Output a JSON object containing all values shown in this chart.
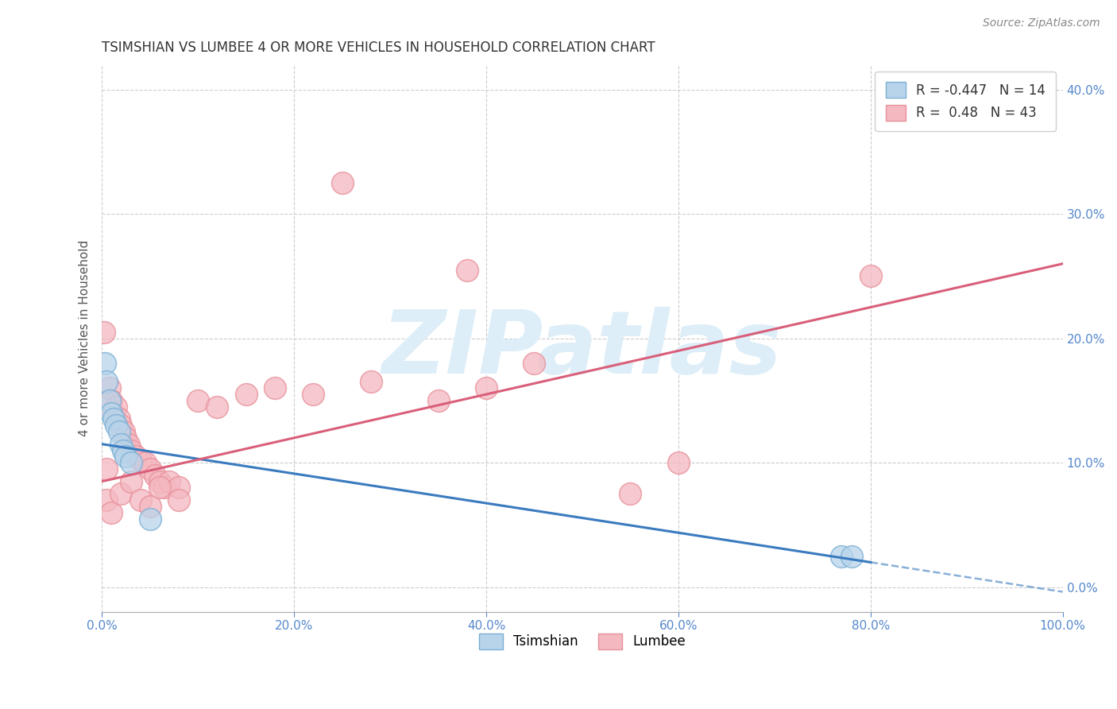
{
  "title": "TSIMSHIAN VS LUMBEE 4 OR MORE VEHICLES IN HOUSEHOLD CORRELATION CHART",
  "source_text": "Source: ZipAtlas.com",
  "ylabel": "4 or more Vehicles in Household",
  "legend_labels": [
    "Tsimshian",
    "Lumbee"
  ],
  "tsimshian_R": -0.447,
  "tsimshian_N": 14,
  "lumbee_R": 0.48,
  "lumbee_N": 43,
  "tsimshian_face_color": "#b8d4ea",
  "tsimshian_edge_color": "#7bafd4",
  "lumbee_face_color": "#f4b8c1",
  "lumbee_edge_color": "#e8909a",
  "tsimshian_line_color": "#3a7bbf",
  "lumbee_line_color": "#d95f7a",
  "background_color": "#ffffff",
  "grid_color": "#cccccc",
  "watermark": "ZIPatlas",
  "watermark_color": "#ddeef8",
  "xlim": [
    0.0,
    100.0
  ],
  "ylim": [
    -2.0,
    42.0
  ],
  "xtick_positions": [
    0,
    20,
    40,
    60,
    80,
    100
  ],
  "ytick_positions": [
    0,
    10,
    20,
    30,
    40
  ],
  "title_fontsize": 12,
  "tick_label_fontsize": 11,
  "tick_label_color": "#5588cc",
  "tsimshian_x": [
    0.3,
    0.5,
    0.8,
    1.0,
    1.2,
    1.5,
    1.8,
    2.0,
    2.2,
    2.5,
    3.0,
    5.0,
    77.0,
    78.0
  ],
  "tsimshian_y": [
    18.0,
    16.5,
    15.0,
    14.0,
    13.5,
    13.0,
    12.5,
    11.5,
    11.0,
    10.5,
    10.0,
    5.5,
    2.5,
    2.5
  ],
  "lumbee_x": [
    0.2,
    0.5,
    0.8,
    1.0,
    1.2,
    1.5,
    1.8,
    2.0,
    2.3,
    2.5,
    2.8,
    3.0,
    3.5,
    4.0,
    4.5,
    5.0,
    5.5,
    6.0,
    6.5,
    7.0,
    8.0,
    10.0,
    12.0,
    15.0,
    18.0,
    22.0,
    25.0,
    28.0,
    35.0,
    40.0,
    45.0,
    55.0,
    60.0,
    0.5,
    1.0,
    2.0,
    3.0,
    4.0,
    5.0,
    6.0,
    8.0,
    38.0,
    80.0
  ],
  "lumbee_y": [
    20.5,
    9.5,
    16.0,
    15.0,
    14.0,
    14.5,
    13.5,
    13.0,
    12.5,
    12.0,
    11.5,
    11.0,
    10.5,
    10.2,
    10.0,
    9.5,
    9.0,
    8.5,
    8.0,
    8.5,
    8.0,
    15.0,
    14.5,
    15.5,
    16.0,
    15.5,
    32.5,
    16.5,
    15.0,
    16.0,
    18.0,
    7.5,
    10.0,
    7.0,
    6.0,
    7.5,
    8.5,
    7.0,
    6.5,
    8.0,
    7.0,
    25.5,
    25.0
  ],
  "tsimshian_line_x0": 0.0,
  "tsimshian_line_y0": 11.5,
  "tsimshian_line_x1": 80.0,
  "tsimshian_line_y1": 2.0,
  "lumbee_line_x0": 0.0,
  "lumbee_line_y0": 8.5,
  "lumbee_line_x1": 100.0,
  "lumbee_line_y1": 26.0
}
